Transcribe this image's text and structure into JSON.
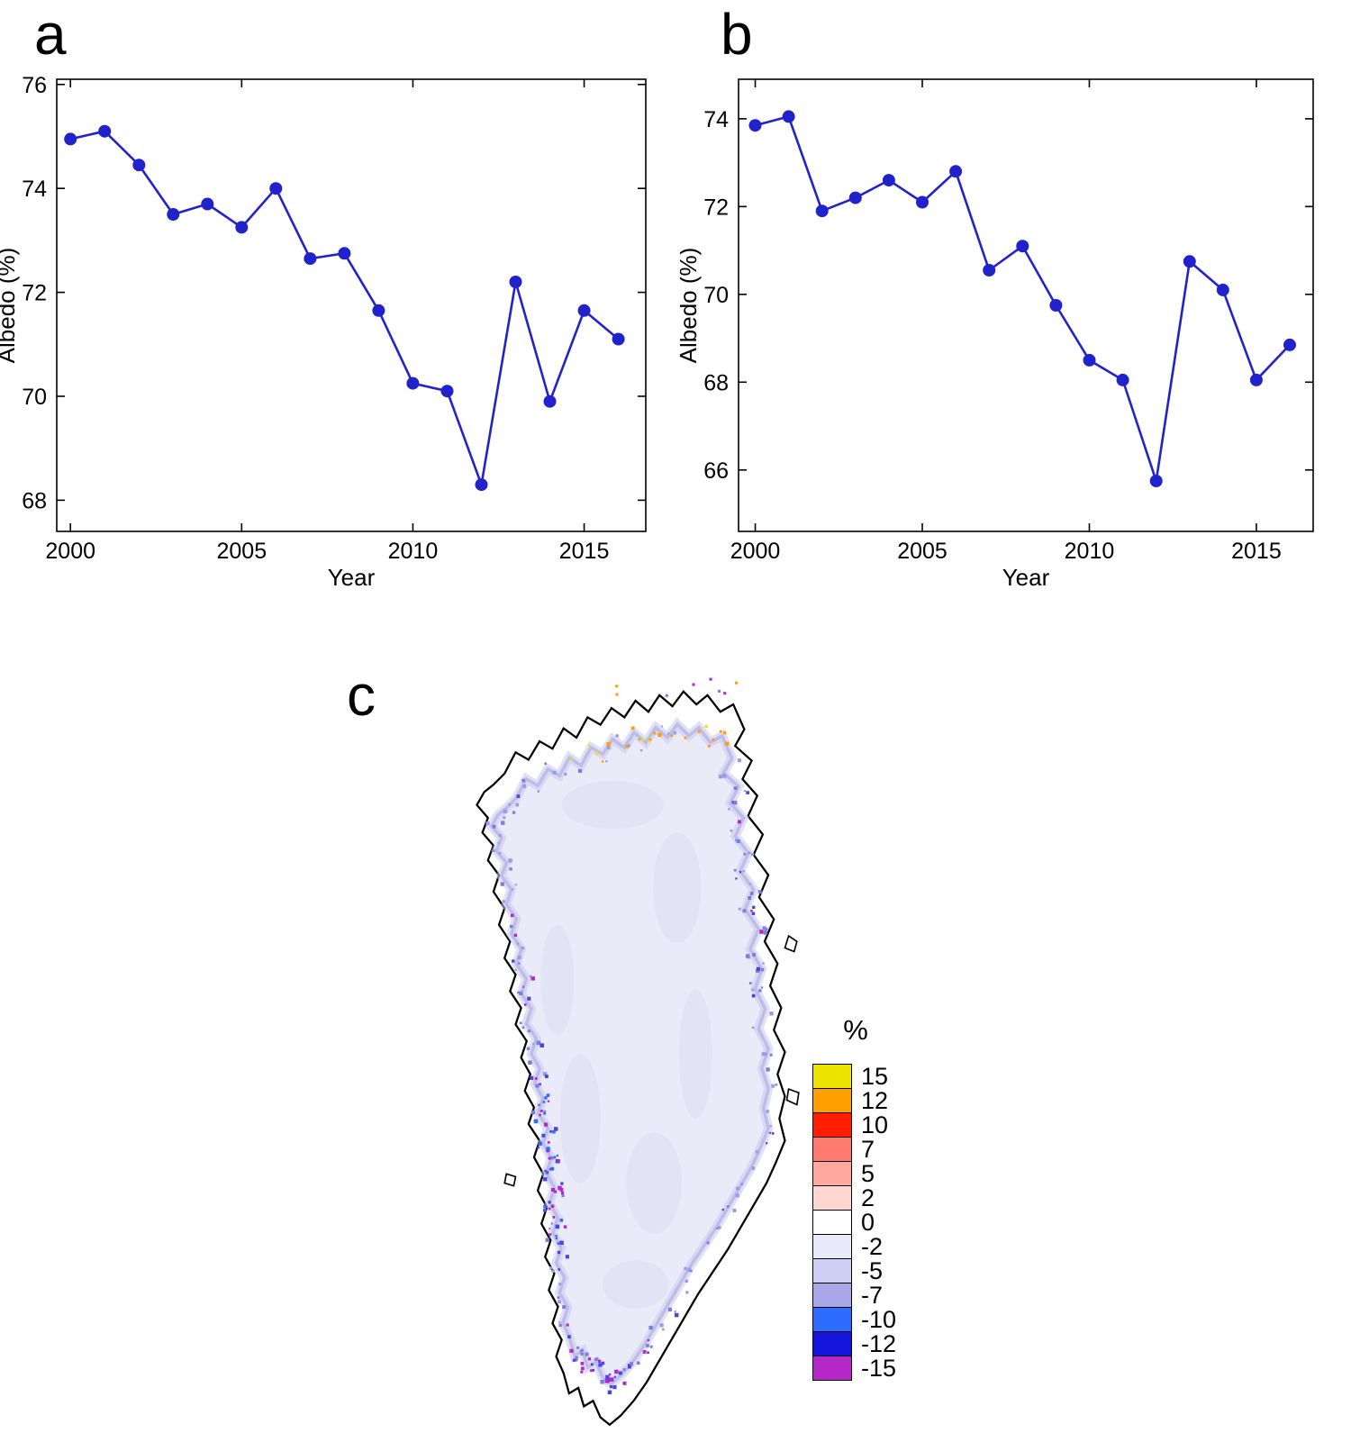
{
  "figure": {
    "panels": [
      {
        "label": "a"
      },
      {
        "label": "b"
      },
      {
        "label": "c"
      }
    ]
  },
  "chart_data": [
    {
      "type": "line",
      "panel": "a",
      "xlabel": "Year",
      "ylabel": "Albedo (%)",
      "x": [
        2000,
        2001,
        2002,
        2003,
        2004,
        2005,
        2006,
        2007,
        2008,
        2009,
        2010,
        2011,
        2012,
        2013,
        2014,
        2015,
        2016
      ],
      "y": [
        74.95,
        75.1,
        74.45,
        73.5,
        73.7,
        73.25,
        74.0,
        72.65,
        72.75,
        71.65,
        70.25,
        70.1,
        68.3,
        72.2,
        69.9,
        71.65,
        71.1
      ],
      "xlim": [
        1999.6,
        2016.8
      ],
      "ylim": [
        67.4,
        76.1
      ],
      "xticks": [
        2000,
        2005,
        2010,
        2015
      ],
      "yticks": [
        68,
        70,
        72,
        74,
        76
      ],
      "line_color": "#2222cc",
      "marker": "circle",
      "grid": false,
      "legend_position": "none"
    },
    {
      "type": "line",
      "panel": "b",
      "xlabel": "Year",
      "ylabel": "Albedo (%)",
      "x": [
        2000,
        2001,
        2002,
        2003,
        2004,
        2005,
        2006,
        2007,
        2008,
        2009,
        2010,
        2011,
        2012,
        2013,
        2014,
        2015,
        2016
      ],
      "y": [
        73.85,
        74.05,
        71.9,
        72.2,
        72.6,
        72.1,
        72.8,
        70.55,
        71.1,
        69.75,
        68.5,
        68.05,
        65.75,
        70.75,
        70.1,
        68.05,
        68.85
      ],
      "xlim": [
        1999.5,
        2016.7
      ],
      "ylim": [
        64.6,
        74.9
      ],
      "xticks": [
        2000,
        2005,
        2010,
        2015
      ],
      "yticks": [
        66,
        68,
        70,
        72,
        74
      ],
      "line_color": "#2222cc",
      "marker": "circle",
      "grid": false,
      "legend_position": "none"
    },
    {
      "type": "heatmap",
      "panel": "c",
      "legend_title": "%",
      "legend": [
        {
          "value": "15",
          "color": "#ede400"
        },
        {
          "value": "12",
          "color": "#ffa000"
        },
        {
          "value": "10",
          "color": "#ff1e00"
        },
        {
          "value": "7",
          "color": "#ff7a6e"
        },
        {
          "value": "5",
          "color": "#ffa8a0"
        },
        {
          "value": "2",
          "color": "#ffd6d2"
        },
        {
          "value": "0",
          "color": "#ffffff"
        },
        {
          "value": "-2",
          "color": "#eaeafa"
        },
        {
          "value": "-5",
          "color": "#cfcff3"
        },
        {
          "value": "-7",
          "color": "#a8a8e9"
        },
        {
          "value": "-10",
          "color": "#2e6bff"
        },
        {
          "value": "-12",
          "color": "#1414dc"
        },
        {
          "value": "-15",
          "color": "#b428c8"
        }
      ],
      "map_colors": {
        "ice_base": "#eaeaf9",
        "ice_shade": "#dcdcf4",
        "edge_band": "#c9c9ef",
        "coast": "#000000",
        "land": "#ffffff"
      },
      "speckle_colors": [
        "#9c9ce6",
        "#7d7de0",
        "#4646e2",
        "#2e6bff",
        "#b428c8",
        "#ffa000",
        "#ede400"
      ]
    }
  ]
}
